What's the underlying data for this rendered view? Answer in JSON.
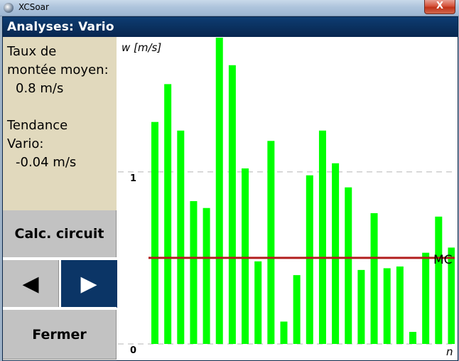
{
  "window": {
    "title": "XCSoar",
    "close_glyph": "X"
  },
  "header": {
    "title": "Analyses: Vario"
  },
  "info": {
    "line1": "Taux de",
    "line2": "montée moyen:",
    "line3": "0.8 m/s",
    "line4": "Tendance",
    "line5": "Vario:",
    "line6": "-0.04 m/s"
  },
  "buttons": {
    "calc": "Calc. circuit",
    "prev_icon": "◀",
    "next_icon": "▶",
    "close": "Fermer"
  },
  "colors": {
    "bar": "#00ff00",
    "mc_line": "#b21e1e",
    "header": "#0a2f5c",
    "panel": "#e1d9bd"
  },
  "chart_data": {
    "type": "bar",
    "ylabel": "w [m/s]",
    "xlabel": "n",
    "y_ticks": [
      {
        "value": 1,
        "label": "1"
      },
      {
        "value": 0,
        "label": "0"
      }
    ],
    "ylim": [
      0,
      1.78
    ],
    "mc_value": 0.5,
    "mc_label": "MC",
    "values": [
      1.29,
      1.51,
      1.24,
      0.83,
      0.79,
      1.78,
      1.62,
      1.02,
      0.48,
      1.18,
      0.13,
      0.4,
      0.98,
      1.24,
      1.05,
      0.91,
      0.43,
      0.76,
      0.44,
      0.45,
      0.07,
      0.53,
      0.74,
      0.56
    ]
  }
}
